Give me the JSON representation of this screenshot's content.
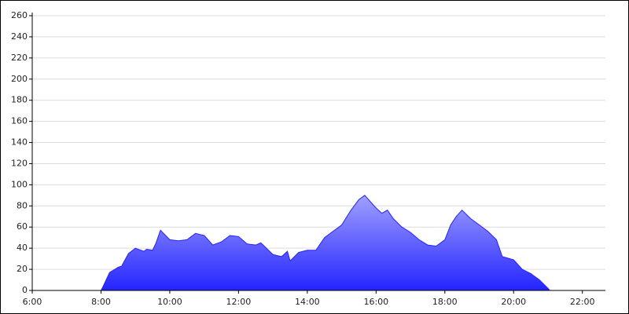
{
  "chart_data": {
    "type": "area",
    "color": "#2424ff",
    "grid": true,
    "x": [
      8.0,
      8.05,
      8.25,
      8.5,
      8.6,
      8.8,
      9.0,
      9.25,
      9.33,
      9.5,
      9.6,
      9.73,
      10.0,
      10.25,
      10.5,
      10.75,
      11.0,
      11.25,
      11.5,
      11.75,
      12.0,
      12.25,
      12.5,
      12.65,
      13.0,
      13.25,
      13.42,
      13.5,
      13.75,
      14.0,
      14.25,
      14.5,
      14.75,
      15.0,
      15.25,
      15.5,
      15.67,
      16.0,
      16.17,
      16.33,
      16.5,
      16.75,
      17.0,
      17.25,
      17.5,
      17.75,
      18.0,
      18.17,
      18.33,
      18.5,
      18.75,
      19.0,
      19.25,
      19.5,
      19.67,
      20.0,
      20.25,
      20.5,
      20.75,
      21.0,
      21.05
    ],
    "values": [
      0,
      3,
      17,
      22,
      23,
      35,
      40,
      37,
      39,
      38,
      45,
      57,
      48,
      47,
      48,
      54,
      52,
      43,
      46,
      52,
      51,
      44,
      43,
      45,
      34,
      32,
      37,
      28,
      36,
      38,
      38,
      50,
      56,
      62,
      75,
      86,
      90,
      78,
      73,
      76,
      68,
      60,
      55,
      48,
      43,
      42,
      48,
      62,
      70,
      76,
      68,
      62,
      56,
      48,
      32,
      29,
      20,
      16,
      10,
      2,
      0
    ],
    "xlim": [
      6,
      22.67
    ],
    "ylim": [
      0,
      260
    ],
    "xticks": [
      {
        "value": 6,
        "label": "6:00"
      },
      {
        "value": 8,
        "label": "8:00"
      },
      {
        "value": 10,
        "label": "10:00"
      },
      {
        "value": 12,
        "label": "12:00"
      },
      {
        "value": 14,
        "label": "14:00"
      },
      {
        "value": 16,
        "label": "16:00"
      },
      {
        "value": 18,
        "label": "18:00"
      },
      {
        "value": 20,
        "label": "20:00"
      },
      {
        "value": 22,
        "label": "22:00"
      }
    ],
    "yticks": [
      0,
      20,
      40,
      60,
      80,
      100,
      120,
      140,
      160,
      180,
      200,
      220,
      240,
      260
    ]
  }
}
